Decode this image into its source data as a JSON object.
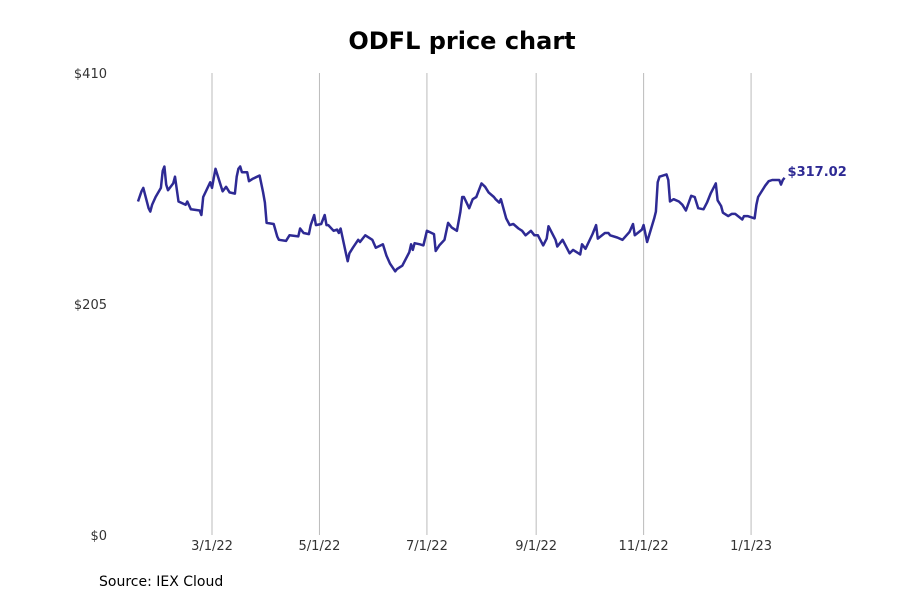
{
  "chart_data": {
    "type": "line",
    "title": "ODFL price chart",
    "source": "Source: IEX Cloud",
    "xlabel": "",
    "ylabel": "",
    "ylim": [
      0,
      410
    ],
    "y_tick_values": [
      0,
      205,
      410
    ],
    "y_tick_labels": [
      "$0",
      "$205",
      "$410"
    ],
    "x_tick_dates": [
      "2022-03-01",
      "2022-05-01",
      "2022-07-01",
      "2022-09-01",
      "2022-11-01",
      "2023-01-01"
    ],
    "x_tick_labels": [
      "3/1/22",
      "5/1/22",
      "7/1/22",
      "9/1/22",
      "11/1/22",
      "1/1/23"
    ],
    "grid": "vertical",
    "line_color": "#2e2a94",
    "last_value_label": "$317.02",
    "series": [
      {
        "points": [
          [
            "2022-01-18",
            296
          ],
          [
            "2022-01-20",
            305
          ],
          [
            "2022-01-21",
            308
          ],
          [
            "2022-01-24",
            290
          ],
          [
            "2022-01-25",
            287
          ],
          [
            "2022-01-26",
            293
          ],
          [
            "2022-01-28",
            300
          ],
          [
            "2022-01-31",
            308
          ],
          [
            "2022-02-01",
            323
          ],
          [
            "2022-02-02",
            327
          ],
          [
            "2022-02-03",
            311
          ],
          [
            "2022-02-04",
            306
          ],
          [
            "2022-02-07",
            312
          ],
          [
            "2022-02-08",
            318
          ],
          [
            "2022-02-10",
            296
          ],
          [
            "2022-02-14",
            293
          ],
          [
            "2022-02-15",
            296
          ],
          [
            "2022-02-17",
            289
          ],
          [
            "2022-02-22",
            288
          ],
          [
            "2022-02-23",
            284
          ],
          [
            "2022-02-24",
            300
          ],
          [
            "2022-02-28",
            313
          ],
          [
            "2022-03-01",
            308
          ],
          [
            "2022-03-02",
            317
          ],
          [
            "2022-03-03",
            325
          ],
          [
            "2022-03-07",
            305
          ],
          [
            "2022-03-09",
            309
          ],
          [
            "2022-03-11",
            304
          ],
          [
            "2022-03-14",
            303
          ],
          [
            "2022-03-15",
            318
          ],
          [
            "2022-03-16",
            325
          ],
          [
            "2022-03-17",
            327
          ],
          [
            "2022-03-18",
            322
          ],
          [
            "2022-03-21",
            322
          ],
          [
            "2022-03-22",
            314
          ],
          [
            "2022-03-24",
            316
          ],
          [
            "2022-03-28",
            319
          ],
          [
            "2022-03-30",
            304
          ],
          [
            "2022-03-31",
            295
          ],
          [
            "2022-04-01",
            277
          ],
          [
            "2022-04-05",
            276
          ],
          [
            "2022-04-07",
            265
          ],
          [
            "2022-04-08",
            262
          ],
          [
            "2022-04-12",
            261
          ],
          [
            "2022-04-14",
            266
          ],
          [
            "2022-04-19",
            265
          ],
          [
            "2022-04-20",
            272
          ],
          [
            "2022-04-22",
            268
          ],
          [
            "2022-04-25",
            267
          ],
          [
            "2022-04-26",
            275
          ],
          [
            "2022-04-28",
            284
          ],
          [
            "2022-04-29",
            275
          ],
          [
            "2022-05-02",
            276
          ],
          [
            "2022-05-04",
            284
          ],
          [
            "2022-05-05",
            275
          ],
          [
            "2022-05-06",
            275
          ],
          [
            "2022-05-09",
            270
          ],
          [
            "2022-05-11",
            271
          ],
          [
            "2022-05-12",
            268
          ],
          [
            "2022-05-13",
            272
          ],
          [
            "2022-05-16",
            250
          ],
          [
            "2022-05-17",
            243
          ],
          [
            "2022-05-18",
            250
          ],
          [
            "2022-05-20",
            255
          ],
          [
            "2022-05-23",
            262
          ],
          [
            "2022-05-24",
            260
          ],
          [
            "2022-05-26",
            264
          ],
          [
            "2022-05-27",
            266
          ],
          [
            "2022-05-31",
            262
          ],
          [
            "2022-06-02",
            255
          ],
          [
            "2022-06-06",
            258
          ],
          [
            "2022-06-08",
            248
          ],
          [
            "2022-06-10",
            241
          ],
          [
            "2022-06-13",
            234
          ],
          [
            "2022-06-14",
            236
          ],
          [
            "2022-06-16",
            238
          ],
          [
            "2022-06-17",
            239
          ],
          [
            "2022-06-21",
            251
          ],
          [
            "2022-06-22",
            258
          ],
          [
            "2022-06-23",
            253
          ],
          [
            "2022-06-24",
            259
          ],
          [
            "2022-06-27",
            258
          ],
          [
            "2022-06-29",
            257
          ],
          [
            "2022-07-01",
            270
          ],
          [
            "2022-07-05",
            267
          ],
          [
            "2022-07-06",
            252
          ],
          [
            "2022-07-08",
            257
          ],
          [
            "2022-07-11",
            262
          ],
          [
            "2022-07-13",
            277
          ],
          [
            "2022-07-15",
            273
          ],
          [
            "2022-07-18",
            270
          ],
          [
            "2022-07-20",
            287
          ],
          [
            "2022-07-21",
            300
          ],
          [
            "2022-07-22",
            300
          ],
          [
            "2022-07-25",
            290
          ],
          [
            "2022-07-27",
            298
          ],
          [
            "2022-07-29",
            300
          ],
          [
            "2022-08-01",
            312
          ],
          [
            "2022-08-03",
            309
          ],
          [
            "2022-08-05",
            304
          ],
          [
            "2022-08-08",
            300
          ],
          [
            "2022-08-09",
            298
          ],
          [
            "2022-08-11",
            295
          ],
          [
            "2022-08-12",
            298
          ],
          [
            "2022-08-15",
            281
          ],
          [
            "2022-08-17",
            275
          ],
          [
            "2022-08-19",
            276
          ],
          [
            "2022-08-22",
            272
          ],
          [
            "2022-08-24",
            270
          ],
          [
            "2022-08-26",
            266
          ],
          [
            "2022-08-29",
            270
          ],
          [
            "2022-08-31",
            266
          ],
          [
            "2022-09-02",
            266
          ],
          [
            "2022-09-05",
            257
          ],
          [
            "2022-09-07",
            263
          ],
          [
            "2022-09-08",
            274
          ],
          [
            "2022-09-12",
            262
          ],
          [
            "2022-09-13",
            256
          ],
          [
            "2022-09-16",
            262
          ],
          [
            "2022-09-20",
            250
          ],
          [
            "2022-09-22",
            253
          ],
          [
            "2022-09-26",
            249
          ],
          [
            "2022-09-27",
            258
          ],
          [
            "2022-09-29",
            254
          ],
          [
            "2022-10-03",
            267
          ],
          [
            "2022-10-05",
            275
          ],
          [
            "2022-10-06",
            263
          ],
          [
            "2022-10-10",
            268
          ],
          [
            "2022-10-12",
            268
          ],
          [
            "2022-10-13",
            266
          ],
          [
            "2022-10-17",
            264
          ],
          [
            "2022-10-20",
            262
          ],
          [
            "2022-10-24",
            269
          ],
          [
            "2022-10-26",
            276
          ],
          [
            "2022-10-27",
            266
          ],
          [
            "2022-10-31",
            271
          ],
          [
            "2022-11-01",
            275
          ],
          [
            "2022-11-03",
            260
          ],
          [
            "2022-11-07",
            281
          ],
          [
            "2022-11-08",
            287
          ],
          [
            "2022-11-09",
            313
          ],
          [
            "2022-11-10",
            318
          ],
          [
            "2022-11-14",
            320
          ],
          [
            "2022-11-15",
            315
          ],
          [
            "2022-11-16",
            296
          ],
          [
            "2022-11-18",
            298
          ],
          [
            "2022-11-21",
            296
          ],
          [
            "2022-11-23",
            293
          ],
          [
            "2022-11-25",
            288
          ],
          [
            "2022-11-28",
            301
          ],
          [
            "2022-11-30",
            300
          ],
          [
            "2022-12-02",
            290
          ],
          [
            "2022-12-05",
            289
          ],
          [
            "2022-12-07",
            295
          ],
          [
            "2022-12-09",
            303
          ],
          [
            "2022-12-12",
            312
          ],
          [
            "2022-12-13",
            297
          ],
          [
            "2022-12-15",
            292
          ],
          [
            "2022-12-16",
            286
          ],
          [
            "2022-12-19",
            283
          ],
          [
            "2022-12-21",
            285
          ],
          [
            "2022-12-23",
            285
          ],
          [
            "2022-12-27",
            280
          ],
          [
            "2022-12-28",
            283
          ],
          [
            "2022-12-30",
            283
          ],
          [
            "2023-01-03",
            281
          ],
          [
            "2023-01-04",
            293
          ],
          [
            "2023-01-05",
            300
          ],
          [
            "2023-01-09",
            310
          ],
          [
            "2023-01-11",
            314
          ],
          [
            "2023-01-13",
            315
          ],
          [
            "2023-01-17",
            315
          ],
          [
            "2023-01-18",
            311
          ],
          [
            "2023-01-19",
            315
          ],
          [
            "2023-01-20",
            317.02
          ]
        ]
      }
    ]
  }
}
